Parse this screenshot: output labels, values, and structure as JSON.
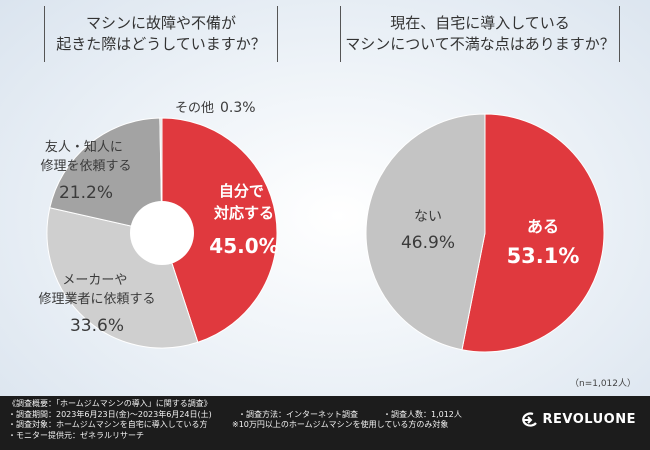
{
  "questions": {
    "q1_line1": "マシンに故障や不備が",
    "q1_line2": "起きた際はどうしていますか？",
    "q2_line1": "現在、自宅に導入している",
    "q2_line2": "マシンについて不満な点はありますか？"
  },
  "sample_size": "（n=1,012人）",
  "footer": {
    "survey_overview": "《調査概要：「ホームジムマシンの導入」に関する調査》",
    "period": "・調査期間：2023年6月23日(金)〜2023年6月24日(土)",
    "method": "・調査方法：インターネット調査",
    "count": "・調査人数：1,012人",
    "target": "・調査対象：ホームジムマシンを自宅に導入している方",
    "target_note": "※10万円以上のホームジムマシンを使用している方のみ対象",
    "monitor": "・モニター提供元：ゼネラルリサーチ",
    "logo_text": "REVOLUONE"
  },
  "chart_data": [
    {
      "type": "pie",
      "style": "donut",
      "title": "マシンに故障や不備が起きた際はどうしていますか？",
      "slices": [
        {
          "label_lines": [
            "自分で",
            "対応する"
          ],
          "value": 45.0,
          "display": "45.0%",
          "color": "#e0393e"
        },
        {
          "label_lines": [
            "メーカーや",
            "修理業者に依頼する"
          ],
          "value": 33.6,
          "display": "33.6%",
          "color": "#cfcfcf"
        },
        {
          "label_lines": [
            "友人・知人に",
            "修理を依頼する"
          ],
          "value": 21.2,
          "display": "21.2%",
          "color": "#a3a3a3"
        },
        {
          "label_lines": [
            "その他"
          ],
          "value": 0.3,
          "display": "0.3%",
          "color": "#dddddd"
        }
      ]
    },
    {
      "type": "pie",
      "title": "現在、自宅に導入しているマシンについて不満な点はありますか？",
      "slices": [
        {
          "label_lines": [
            "ある"
          ],
          "value": 53.1,
          "display": "53.1%",
          "color": "#e0393e"
        },
        {
          "label_lines": [
            "ない"
          ],
          "value": 46.9,
          "display": "46.9%",
          "color": "#c4c4c4"
        }
      ]
    }
  ]
}
